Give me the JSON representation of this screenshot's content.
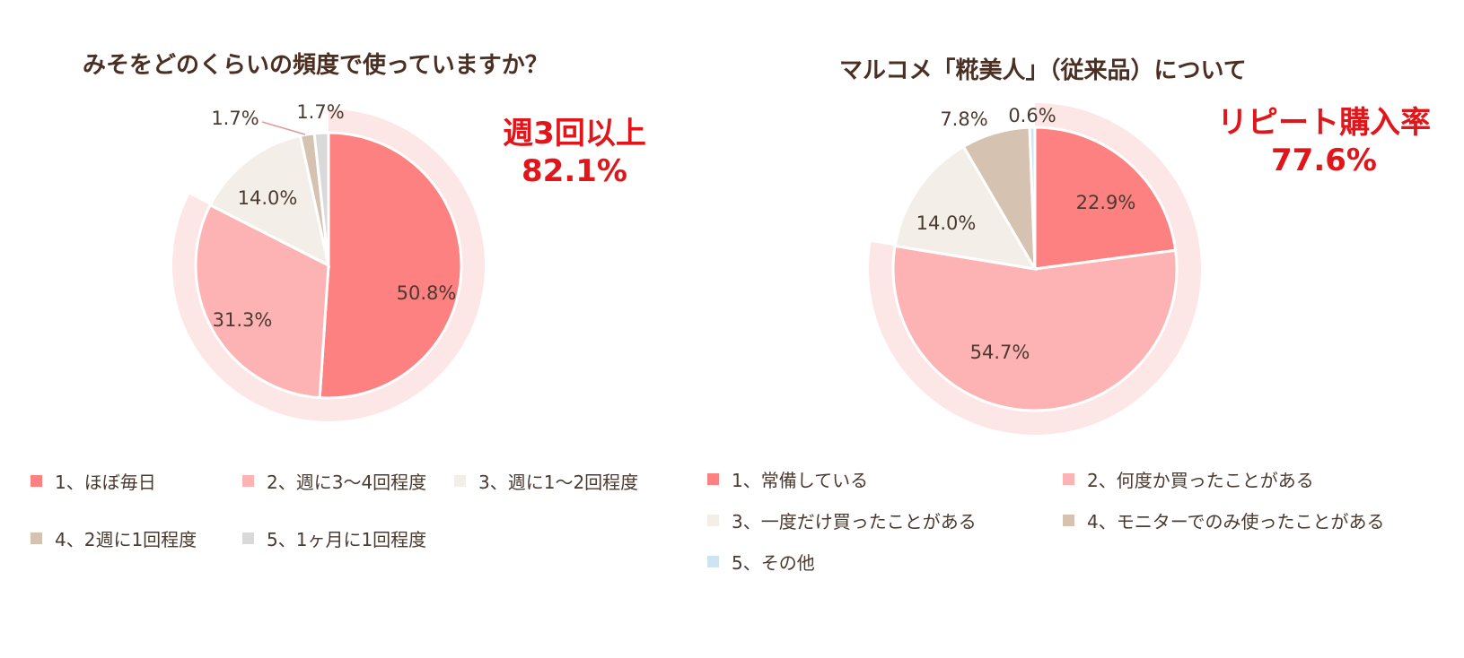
{
  "chart_data": [
    {
      "type": "pie",
      "title": "みそをどのくらいの頻度で使っていますか？",
      "callout": {
        "line1": "週3回以上",
        "line2": "82.1%"
      },
      "categories": [
        "1、ほぼ毎日",
        "2、週に3～4回程度",
        "3、週に1～2回程度",
        "4、2週に1回程度",
        "5、1ヶ月に1回程度"
      ],
      "values": [
        50.8,
        31.3,
        14.0,
        1.7,
        1.7
      ],
      "labels": [
        "50.8%",
        "31.3%",
        "14.0%",
        "1.7%",
        "1.7%"
      ],
      "colors": [
        "#fe8181",
        "#fdb3b3",
        "#f3efe8",
        "#d5c2b0",
        "#d9d9d9"
      ],
      "highlight_ring_color": "#fde6e6",
      "highlight_ring_covers": [
        "1、ほぼ毎日",
        "2、週に3～4回程度"
      ]
    },
    {
      "type": "pie",
      "title": "マルコメ「糀美人」（従来品）について",
      "callout": {
        "line1": "リピート購入率",
        "line2": "77.6%"
      },
      "categories": [
        "1、常備している",
        "2、何度か買ったことがある",
        "3、一度だけ買ったことがある",
        "4、モニターでのみ使ったことがある",
        "5、その他"
      ],
      "values": [
        22.9,
        54.7,
        14.0,
        7.8,
        0.6
      ],
      "labels": [
        "22.9%",
        "54.7%",
        "14.0%",
        "7.8%",
        "0.6%"
      ],
      "colors": [
        "#fe8181",
        "#fdb3b3",
        "#f3efe8",
        "#d5c2b0",
        "#cfe4f3"
      ],
      "highlight_ring_color": "#fde6e6",
      "highlight_ring_covers": [
        "1、常備している",
        "2、何度か買ったことがある"
      ]
    }
  ]
}
